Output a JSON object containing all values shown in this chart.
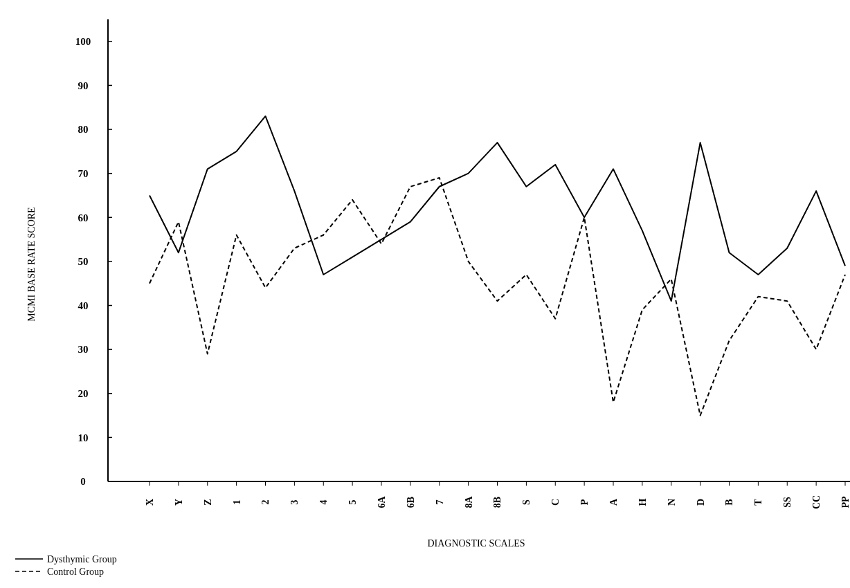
{
  "chart_data": {
    "type": "line",
    "xlabel": "DIAGNOSTIC SCALES",
    "ylabel": "MCMI BASE RATE SCORE",
    "categories": [
      "X",
      "Y",
      "Z",
      "1",
      "2",
      "3",
      "4",
      "5",
      "6A",
      "6B",
      "7",
      "8A",
      "8B",
      "S",
      "C",
      "P",
      "A",
      "H",
      "N",
      "D",
      "B",
      "T",
      "SS",
      "CC",
      "PP"
    ],
    "series": [
      {
        "name": "Dysthymic Group",
        "color": "#000000",
        "line_style": "solid",
        "values": [
          65,
          52,
          71,
          75,
          83,
          66,
          47,
          51,
          55,
          59,
          67,
          70,
          77,
          67,
          72,
          60,
          71,
          57,
          41,
          77,
          52,
          47,
          53,
          66,
          49
        ]
      },
      {
        "name": "Control Group",
        "color": "#000000",
        "line_style": "dashed",
        "values": [
          45,
          59,
          29,
          56,
          44,
          53,
          56,
          64,
          54,
          67,
          69,
          50,
          41,
          47,
          37,
          60,
          18,
          39,
          46,
          15,
          32,
          42,
          41,
          30,
          47
        ]
      }
    ],
    "ylim": [
      0,
      105
    ],
    "yticks": [
      0,
      10,
      20,
      30,
      40,
      50,
      60,
      70,
      80,
      90,
      100
    ],
    "grid": false,
    "legend": "bottom left",
    "marker": "none"
  }
}
